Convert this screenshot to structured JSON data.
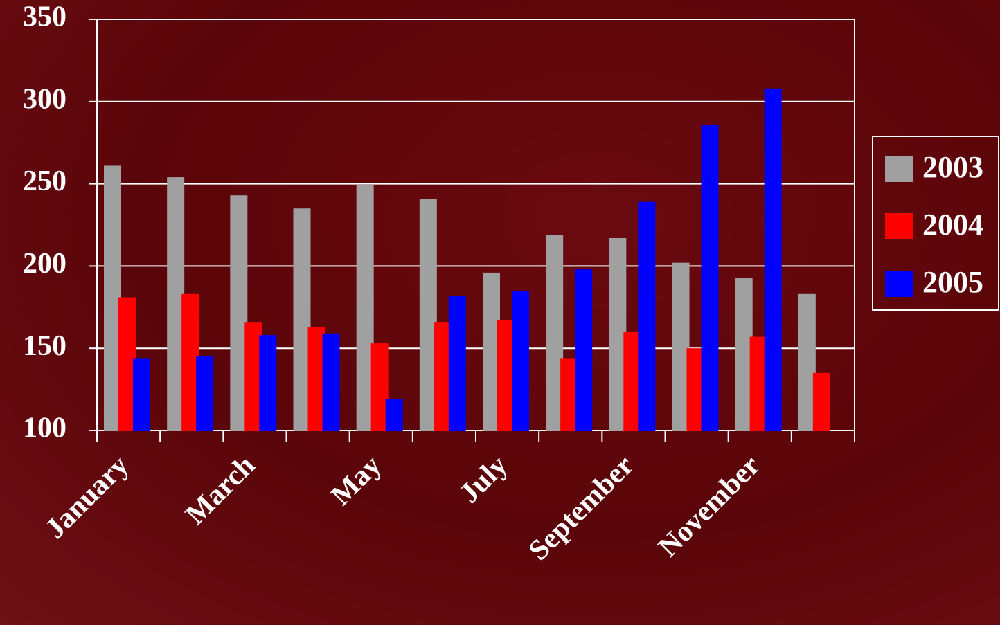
{
  "chart_data": {
    "type": "bar",
    "categories": [
      "January",
      null,
      "March",
      null,
      "May",
      null,
      "July",
      null,
      "September",
      null,
      "November",
      null
    ],
    "series": [
      {
        "name": "2003",
        "color": "#a0a0a0",
        "values": [
          261,
          254,
          243,
          235,
          249,
          241,
          196,
          219,
          217,
          202,
          193,
          183
        ]
      },
      {
        "name": "2004",
        "color": "#ff0000",
        "values": [
          181,
          183,
          166,
          163,
          153,
          166,
          167,
          144,
          160,
          150,
          157,
          135
        ]
      },
      {
        "name": "2005",
        "color": "#0000ff",
        "values": [
          144,
          145,
          158,
          159,
          119,
          182,
          185,
          198,
          239,
          286,
          308,
          null
        ]
      }
    ],
    "ylim": [
      100,
      350
    ],
    "yticks": [
      100,
      150,
      200,
      250,
      300,
      350
    ],
    "grid": true,
    "legend": "right"
  }
}
